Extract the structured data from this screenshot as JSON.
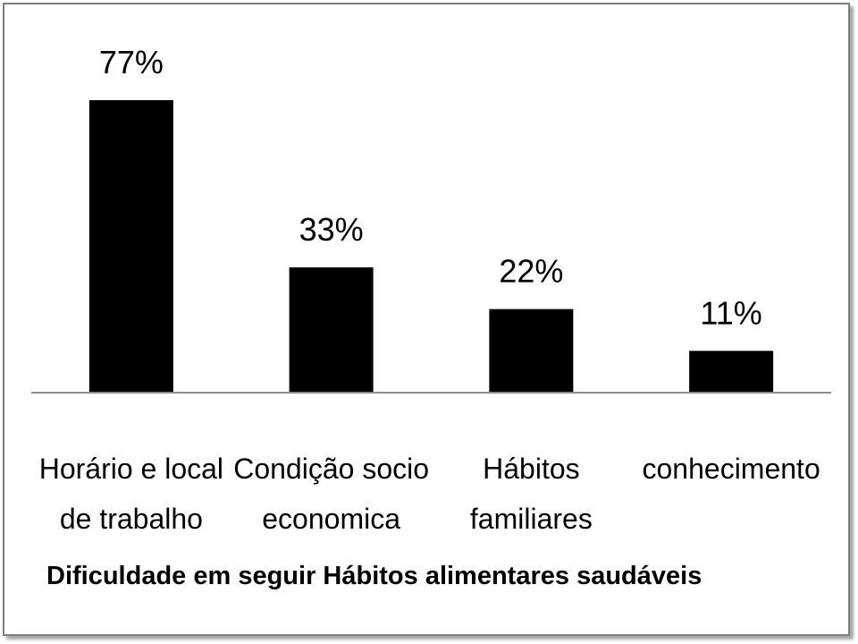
{
  "chart_data": {
    "type": "bar",
    "title": "Dificuldade em seguir Hábitos alimentares saudáveis",
    "categories": [
      [
        "Horário e local",
        "de trabalho"
      ],
      [
        "Condição socio",
        "economica"
      ],
      [
        "Hábitos",
        "familiares"
      ],
      [
        "conhecimento"
      ]
    ],
    "values": [
      77,
      33,
      22,
      11
    ],
    "value_labels": [
      "77%",
      "33%",
      "22%",
      "11%"
    ],
    "bar_color": "#000000",
    "ylim": [
      0,
      77
    ],
    "grid": false,
    "legend": "none"
  }
}
